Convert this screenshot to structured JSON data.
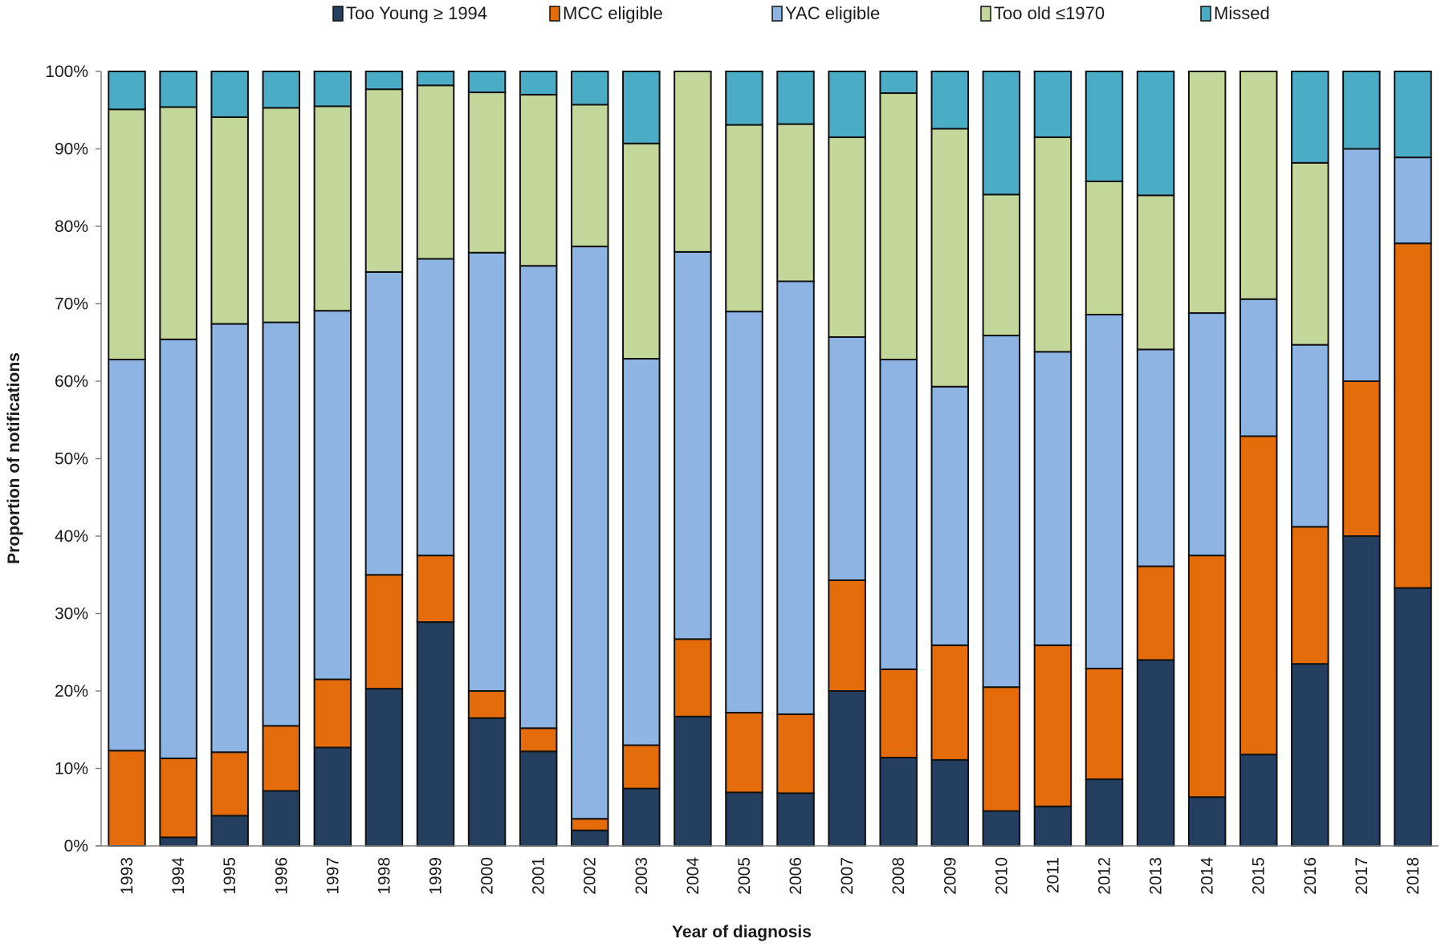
{
  "chart_data": {
    "type": "bar",
    "stacked": true,
    "normalized": true,
    "title": "",
    "xlabel": "Year of diagnosis",
    "ylabel": "Proportion of notifications",
    "ylim": [
      0,
      100
    ],
    "yticks": [
      "0%",
      "10%",
      "20%",
      "30%",
      "40%",
      "50%",
      "60%",
      "70%",
      "80%",
      "90%",
      "100%"
    ],
    "grid": false,
    "legend_position": "top",
    "categories": [
      "1993",
      "1994",
      "1995",
      "1996",
      "1997",
      "1998",
      "1999",
      "2000",
      "2001",
      "2002",
      "2003",
      "2004",
      "2005",
      "2006",
      "2007",
      "2008",
      "2009",
      "2010",
      "2011",
      "2012",
      "2013",
      "2014",
      "2015",
      "2016",
      "2017",
      "2018"
    ],
    "series": [
      {
        "name": "Too Young ≥ 1994",
        "color": "#243F60",
        "values": [
          0.0,
          1.1,
          3.9,
          7.1,
          12.7,
          20.3,
          28.9,
          16.5,
          12.2,
          2.0,
          7.4,
          16.7,
          6.9,
          6.8,
          20.0,
          11.4,
          11.1,
          4.5,
          5.1,
          8.6,
          24.0,
          6.3,
          11.8,
          23.5,
          40.0,
          33.3
        ]
      },
      {
        "name": "MCC eligible",
        "color": "#E46C0A",
        "values": [
          12.3,
          10.2,
          8.2,
          8.4,
          8.8,
          14.7,
          8.6,
          3.5,
          3.0,
          1.5,
          5.6,
          10.0,
          10.3,
          10.2,
          14.3,
          11.4,
          14.8,
          16.0,
          20.8,
          14.3,
          12.1,
          31.2,
          41.1,
          17.7,
          20.0,
          44.5
        ]
      },
      {
        "name": "YAC eligible",
        "color": "#8EB4E3",
        "values": [
          50.5,
          54.1,
          55.3,
          52.1,
          47.6,
          39.1,
          38.3,
          56.6,
          59.7,
          73.9,
          49.9,
          50.0,
          51.8,
          55.9,
          31.4,
          40.0,
          33.4,
          45.4,
          37.9,
          45.7,
          28.0,
          31.3,
          17.7,
          23.5,
          30.0,
          11.1
        ]
      },
      {
        "name": "Too old ≤1970",
        "color": "#C4D79B",
        "values": [
          32.3,
          30.0,
          26.7,
          27.7,
          26.4,
          23.6,
          22.4,
          20.7,
          22.1,
          18.3,
          27.8,
          23.3,
          24.1,
          20.3,
          25.8,
          34.4,
          33.3,
          18.2,
          27.7,
          17.2,
          19.9,
          31.2,
          29.4,
          23.5,
          0.0,
          0.0
        ]
      },
      {
        "name": "Missed",
        "color": "#4BACC6",
        "values": [
          4.9,
          4.6,
          5.9,
          4.7,
          4.5,
          2.3,
          1.8,
          2.7,
          3.0,
          4.3,
          9.3,
          0.0,
          6.9,
          6.8,
          8.5,
          2.8,
          7.4,
          15.9,
          8.5,
          14.2,
          16.0,
          0.0,
          0.0,
          11.8,
          10.0,
          11.1
        ]
      }
    ]
  }
}
